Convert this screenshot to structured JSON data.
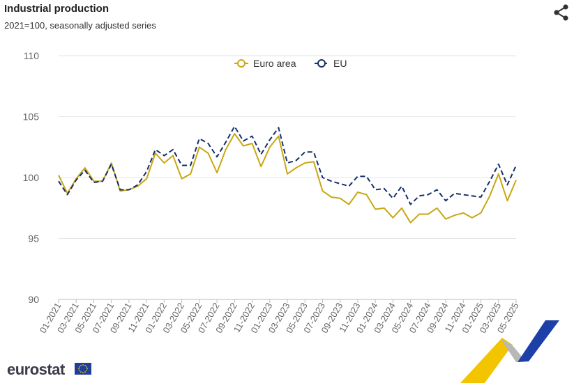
{
  "header": {
    "title": "Industrial production",
    "subtitle": "2021=100, seasonally adjusted series",
    "share_icon": "share-icon"
  },
  "logo": {
    "text": "eurostat",
    "flag_icon": "eu-flag-icon"
  },
  "colors": {
    "euro_area": "#c9a712",
    "eu": "#142f6c",
    "grid": "#e6e6e6",
    "axis_text": "#666666"
  },
  "chart_data": {
    "type": "line",
    "ylim": [
      90,
      110
    ],
    "y_ticks": [
      90,
      95,
      100,
      105,
      110
    ],
    "grid": "horizontal",
    "legend_placement": "top-center",
    "x": [
      "01-2021",
      "02-2021",
      "03-2021",
      "04-2021",
      "05-2021",
      "06-2021",
      "07-2021",
      "08-2021",
      "09-2021",
      "10-2021",
      "11-2021",
      "12-2021",
      "01-2022",
      "02-2022",
      "03-2022",
      "04-2022",
      "05-2022",
      "06-2022",
      "07-2022",
      "08-2022",
      "09-2022",
      "10-2022",
      "11-2022",
      "12-2022",
      "01-2023",
      "02-2023",
      "03-2023",
      "04-2023",
      "05-2023",
      "06-2023",
      "07-2023",
      "08-2023",
      "09-2023",
      "10-2023",
      "11-2023",
      "12-2023",
      "01-2024",
      "02-2024",
      "03-2024",
      "04-2024",
      "05-2024",
      "06-2024",
      "07-2024",
      "08-2024",
      "09-2024",
      "10-2024",
      "11-2024",
      "12-2024",
      "01-2025",
      "02-2025",
      "03-2025",
      "04-2025",
      "05-2025"
    ],
    "x_tick_labels": [
      "01-2021",
      "03-2021",
      "05-2021",
      "07-2021",
      "09-2021",
      "11-2021",
      "01-2022",
      "03-2022",
      "05-2022",
      "07-2022",
      "09-2022",
      "11-2022",
      "01-2023",
      "03-2023",
      "05-2023",
      "07-2023",
      "09-2023",
      "11-2023",
      "01-2024",
      "03-2024",
      "05-2024",
      "07-2024",
      "09-2024",
      "11-2024",
      "01-2025",
      "03-2025",
      "05-2025"
    ],
    "series": [
      {
        "name": "Euro area",
        "color": "#c9a712",
        "style": "solid",
        "values": [
          100.2,
          98.7,
          99.9,
          100.8,
          99.7,
          99.7,
          101.2,
          98.9,
          99.0,
          99.3,
          99.9,
          102.0,
          101.2,
          101.8,
          99.9,
          100.3,
          102.5,
          102.0,
          100.4,
          102.3,
          103.6,
          102.6,
          102.8,
          100.9,
          102.5,
          103.4,
          100.3,
          100.8,
          101.2,
          101.3,
          98.9,
          98.4,
          98.3,
          97.8,
          98.8,
          98.6,
          97.4,
          97.5,
          96.7,
          97.5,
          96.3,
          97.0,
          97.0,
          97.5,
          96.6,
          96.9,
          97.1,
          96.7,
          97.1,
          98.5,
          100.3,
          98.1,
          99.8
        ]
      },
      {
        "name": "EU",
        "color": "#142f6c",
        "style": "dashed",
        "values": [
          99.7,
          98.6,
          99.8,
          100.6,
          99.6,
          99.7,
          101.1,
          99.0,
          99.0,
          99.4,
          100.5,
          102.3,
          101.8,
          102.3,
          101.0,
          101.0,
          103.2,
          102.8,
          101.7,
          102.9,
          104.2,
          103.0,
          103.4,
          101.9,
          103.1,
          104.1,
          101.2,
          101.4,
          102.1,
          102.1,
          100.0,
          99.7,
          99.5,
          99.3,
          100.1,
          100.1,
          99.0,
          99.1,
          98.3,
          99.3,
          97.8,
          98.5,
          98.6,
          99.0,
          98.1,
          98.7,
          98.6,
          98.5,
          98.4,
          99.7,
          101.1,
          99.4,
          101.0
        ]
      }
    ]
  }
}
